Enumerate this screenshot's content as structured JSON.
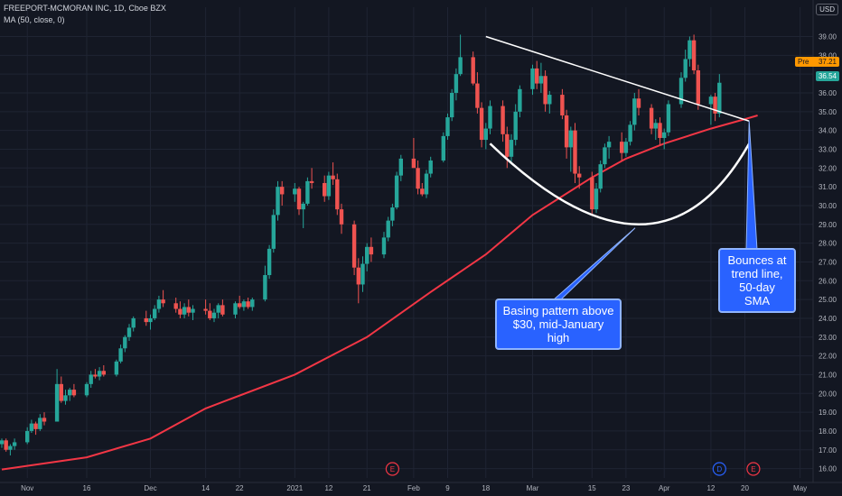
{
  "header": {
    "title": "FREEPORT-MCMORAN INC, 1D, Cboe BZX",
    "indicator": "MA (50, close, 0)"
  },
  "currency_badge": "USD",
  "price_tags": {
    "pre_label": "Pre",
    "pre_value": "37.21",
    "last_value": "36.54"
  },
  "event_markers": [
    {
      "label": "E",
      "date": "2021-01-27",
      "color": "#f23645"
    },
    {
      "label": "D",
      "date": "2021-04-14",
      "color": "#2962ff"
    },
    {
      "label": "E",
      "date": "2021-04-22",
      "color": "#f23645"
    }
  ],
  "annotations": {
    "callout_base": {
      "lines": [
        "Basing pattern above",
        "$30, mid-January high"
      ]
    },
    "callout_bounce": {
      "lines": [
        "Bounces at",
        "trend line,",
        "50-day SMA"
      ]
    }
  },
  "colors": {
    "background": "#131722",
    "grid": "#1f2433",
    "up": "#26a69a",
    "down": "#ef5350",
    "ma": "#f23645",
    "axis_text": "#b2b5be",
    "drawing": "#ffffff",
    "callout_bg": "#2962ff",
    "pre_tag": "#ff9800",
    "last_tag": "#26a69a"
  },
  "chart_data": {
    "type": "candlestick",
    "title": "FREEPORT-MCMORAN INC, 1D, Cboe BZX",
    "ylim": [
      15.5,
      39.6
    ],
    "y_axis_side": "right",
    "y_ticks": [
      "16.00",
      "17.00",
      "18.00",
      "19.00",
      "20.00",
      "21.00",
      "22.00",
      "23.00",
      "24.00",
      "25.00",
      "26.00",
      "27.00",
      "28.00",
      "29.00",
      "30.00",
      "31.00",
      "32.00",
      "33.00",
      "34.00",
      "35.00",
      "36.00",
      "37.00",
      "38.00",
      "39.00"
    ],
    "x_ticks": [
      {
        "label": "Nov",
        "date": "2020-11-02"
      },
      {
        "label": "16",
        "date": "2020-11-16"
      },
      {
        "label": "Dec",
        "date": "2020-12-01"
      },
      {
        "label": "14",
        "date": "2020-12-14"
      },
      {
        "label": "22",
        "date": "2020-12-22"
      },
      {
        "label": "2021",
        "date": "2021-01-04"
      },
      {
        "label": "12",
        "date": "2021-01-12"
      },
      {
        "label": "21",
        "date": "2021-01-21"
      },
      {
        "label": "Feb",
        "date": "2021-02-01"
      },
      {
        "label": "9",
        "date": "2021-02-09"
      },
      {
        "label": "18",
        "date": "2021-02-18"
      },
      {
        "label": "Mar",
        "date": "2021-03-01"
      },
      {
        "label": "15",
        "date": "2021-03-15"
      },
      {
        "label": "23",
        "date": "2021-03-23"
      },
      {
        "label": "Apr",
        "date": "2021-04-01"
      },
      {
        "label": "12",
        "date": "2021-04-12"
      },
      {
        "label": "20",
        "date": "2021-04-20"
      },
      {
        "label": "May",
        "date": "2021-05-03"
      }
    ],
    "first_date": "2020-10-27",
    "candles": [
      [
        17.3,
        17.6,
        17.1,
        17.5
      ],
      [
        17.5,
        17.6,
        16.9,
        17.0
      ],
      [
        17.0,
        17.3,
        16.7,
        17.2
      ],
      [
        17.2,
        17.6,
        17.0,
        17.4
      ],
      [
        17.4,
        18.2,
        17.3,
        18.0
      ],
      [
        18.0,
        18.6,
        17.9,
        18.4
      ],
      [
        18.4,
        18.5,
        17.8,
        18.1
      ],
      [
        18.1,
        18.9,
        18.0,
        18.7
      ],
      [
        18.7,
        19.0,
        18.3,
        18.5
      ],
      [
        18.5,
        21.3,
        18.5,
        20.5
      ],
      [
        20.5,
        20.9,
        19.5,
        19.6
      ],
      [
        19.6,
        20.2,
        19.4,
        19.9
      ],
      [
        19.9,
        20.3,
        19.6,
        20.2
      ],
      [
        20.2,
        20.5,
        19.8,
        19.9
      ],
      [
        19.9,
        20.6,
        19.8,
        20.5
      ],
      [
        20.5,
        21.2,
        20.3,
        21.0
      ],
      [
        21.0,
        21.3,
        20.8,
        20.9
      ],
      [
        20.9,
        21.4,
        20.7,
        21.2
      ],
      [
        21.2,
        21.5,
        20.9,
        21.0
      ],
      [
        21.0,
        21.8,
        20.9,
        21.7
      ],
      [
        21.7,
        22.6,
        21.6,
        22.4
      ],
      [
        22.4,
        23.1,
        22.2,
        23.0
      ],
      [
        23.0,
        23.7,
        22.8,
        23.5
      ],
      [
        23.5,
        24.1,
        23.3,
        24.0
      ],
      [
        24.0,
        24.4,
        23.6,
        23.8
      ],
      [
        23.8,
        24.2,
        23.4,
        24.0
      ],
      [
        24.0,
        24.7,
        23.9,
        24.5
      ],
      [
        24.5,
        25.2,
        24.3,
        25.0
      ],
      [
        25.0,
        25.5,
        24.6,
        24.8
      ],
      [
        24.8,
        25.1,
        24.3,
        24.5
      ],
      [
        24.5,
        24.9,
        24.0,
        24.2
      ],
      [
        24.2,
        24.8,
        24.0,
        24.6
      ],
      [
        24.6,
        25.0,
        24.1,
        24.3
      ],
      [
        24.3,
        24.7,
        23.9,
        24.5
      ],
      [
        24.5,
        25.0,
        24.2,
        24.4
      ],
      [
        24.4,
        24.8,
        23.9,
        24.0
      ],
      [
        24.0,
        24.5,
        23.8,
        24.3
      ],
      [
        24.3,
        24.8,
        24.0,
        24.7
      ],
      [
        24.7,
        25.0,
        24.1,
        24.2
      ],
      [
        24.2,
        24.9,
        24.0,
        24.8
      ],
      [
        24.8,
        25.2,
        24.5,
        24.6
      ],
      [
        24.6,
        25.0,
        24.4,
        24.9
      ],
      [
        24.9,
        25.1,
        24.5,
        24.6
      ],
      [
        24.6,
        25.1,
        24.4,
        25.0
      ],
      [
        25.0,
        26.8,
        24.9,
        26.3
      ],
      [
        26.3,
        27.9,
        26.1,
        27.7
      ],
      [
        27.7,
        29.8,
        27.5,
        29.5
      ],
      [
        29.5,
        31.3,
        29.2,
        31.0
      ],
      [
        31.0,
        31.3,
        30.0,
        30.6
      ],
      [
        30.6,
        31.2,
        30.2,
        30.9
      ],
      [
        30.9,
        31.0,
        29.5,
        29.8
      ],
      [
        29.8,
        30.2,
        28.8,
        30.1
      ],
      [
        30.1,
        31.5,
        30.0,
        31.3
      ],
      [
        31.3,
        32.0,
        30.9,
        31.2
      ],
      [
        31.2,
        31.6,
        30.2,
        30.5
      ],
      [
        30.5,
        31.8,
        30.3,
        31.6
      ],
      [
        31.6,
        32.3,
        31.1,
        31.4
      ],
      [
        31.4,
        31.7,
        29.5,
        29.8
      ],
      [
        29.8,
        30.1,
        28.5,
        29.0
      ],
      [
        29.0,
        29.2,
        26.3,
        26.7
      ],
      [
        26.7,
        27.2,
        24.8,
        25.8
      ],
      [
        25.8,
        27.3,
        25.4,
        26.9
      ],
      [
        26.9,
        28.0,
        26.5,
        27.8
      ],
      [
        27.8,
        28.3,
        27.0,
        27.4
      ],
      [
        27.4,
        28.6,
        27.2,
        28.3
      ],
      [
        28.3,
        29.4,
        28.1,
        29.2
      ],
      [
        29.2,
        30.1,
        28.9,
        29.9
      ],
      [
        29.9,
        31.8,
        29.8,
        31.6
      ],
      [
        31.6,
        32.7,
        31.3,
        32.5
      ],
      [
        32.5,
        33.6,
        32.1,
        32.0
      ],
      [
        32.0,
        32.4,
        30.6,
        30.9
      ],
      [
        30.9,
        31.2,
        30.5,
        30.6
      ],
      [
        30.6,
        31.9,
        30.4,
        31.7
      ],
      [
        31.7,
        32.6,
        31.5,
        32.4
      ],
      [
        32.4,
        33.9,
        32.3,
        33.7
      ],
      [
        33.7,
        34.9,
        33.5,
        34.7
      ],
      [
        34.7,
        36.2,
        34.5,
        36.0
      ],
      [
        36.0,
        37.3,
        35.6,
        37.0
      ],
      [
        37.0,
        39.1,
        36.9,
        37.9
      ],
      [
        37.9,
        38.2,
        36.4,
        36.5
      ],
      [
        36.5,
        37.1,
        34.9,
        35.2
      ],
      [
        35.2,
        35.5,
        33.1,
        33.5
      ],
      [
        33.5,
        34.4,
        33.0,
        34.1
      ],
      [
        34.1,
        35.6,
        33.8,
        35.3
      ],
      [
        35.3,
        35.6,
        33.4,
        33.8
      ],
      [
        33.8,
        34.2,
        32.0,
        32.6
      ],
      [
        32.6,
        33.8,
        32.3,
        33.5
      ],
      [
        33.5,
        35.4,
        33.2,
        35.0
      ],
      [
        35.0,
        36.4,
        34.7,
        36.2
      ],
      [
        36.2,
        37.5,
        35.9,
        37.3
      ],
      [
        37.3,
        37.7,
        36.2,
        36.5
      ],
      [
        36.5,
        37.6,
        36.0,
        36.9
      ],
      [
        36.9,
        37.2,
        35.0,
        35.4
      ],
      [
        35.4,
        36.1,
        34.9,
        35.9
      ],
      [
        35.9,
        36.2,
        34.6,
        34.8
      ],
      [
        34.8,
        35.1,
        32.5,
        33.1
      ],
      [
        33.1,
        34.2,
        31.8,
        34.0
      ],
      [
        34.0,
        34.4,
        31.2,
        31.7
      ],
      [
        31.7,
        32.1,
        30.9,
        31.5
      ],
      [
        31.5,
        31.8,
        29.5,
        29.8
      ],
      [
        29.8,
        31.2,
        29.6,
        30.9
      ],
      [
        30.9,
        32.4,
        30.7,
        32.2
      ],
      [
        32.2,
        33.3,
        32.0,
        33.1
      ],
      [
        33.1,
        33.7,
        32.5,
        33.4
      ],
      [
        33.4,
        33.9,
        32.4,
        32.8
      ],
      [
        32.8,
        33.6,
        32.6,
        33.4
      ],
      [
        33.4,
        34.5,
        33.2,
        34.3
      ],
      [
        34.3,
        36.0,
        34.0,
        35.7
      ],
      [
        35.7,
        36.2,
        34.8,
        35.2
      ],
      [
        35.2,
        35.4,
        33.8,
        34.1
      ],
      [
        34.1,
        34.6,
        33.5,
        34.4
      ],
      [
        34.4,
        34.7,
        33.2,
        33.6
      ],
      [
        33.6,
        34.1,
        33.0,
        33.9
      ],
      [
        33.9,
        35.6,
        33.7,
        35.4
      ],
      [
        35.4,
        37.1,
        35.2,
        36.8
      ],
      [
        36.8,
        38.3,
        36.6,
        37.8
      ],
      [
        37.8,
        39.0,
        37.4,
        38.8
      ],
      [
        38.8,
        39.1,
        37.0,
        37.2
      ],
      [
        37.2,
        37.5,
        35.1,
        35.4
      ],
      [
        35.4,
        35.9,
        34.3,
        35.8
      ],
      [
        35.8,
        36.0,
        34.5,
        34.9
      ],
      [
        34.9,
        37.0,
        34.7,
        36.54
      ]
    ],
    "ma_period": 50,
    "ma_points": [
      [
        "2020-10-27",
        15.95
      ],
      [
        "2020-11-16",
        16.6
      ],
      [
        "2020-12-01",
        17.6
      ],
      [
        "2020-12-14",
        19.2
      ],
      [
        "2021-01-04",
        21.0
      ],
      [
        "2021-01-21",
        23.0
      ],
      [
        "2021-02-05",
        25.4
      ],
      [
        "2021-02-18",
        27.4
      ],
      [
        "2021-03-01",
        29.5
      ],
      [
        "2021-03-15",
        31.5
      ],
      [
        "2021-03-23",
        32.5
      ],
      [
        "2021-04-01",
        33.3
      ],
      [
        "2021-04-12",
        34.1
      ],
      [
        "2021-04-20",
        34.6
      ],
      [
        "2021-04-23",
        34.8
      ]
    ],
    "trend_line": [
      [
        "2021-02-18",
        39.0
      ],
      [
        "2021-04-21",
        34.5
      ]
    ],
    "base_arc": [
      [
        "2021-02-19",
        33.3
      ],
      [
        "2021-03-26",
        29.0
      ],
      [
        "2021-04-21",
        33.3
      ]
    ]
  }
}
